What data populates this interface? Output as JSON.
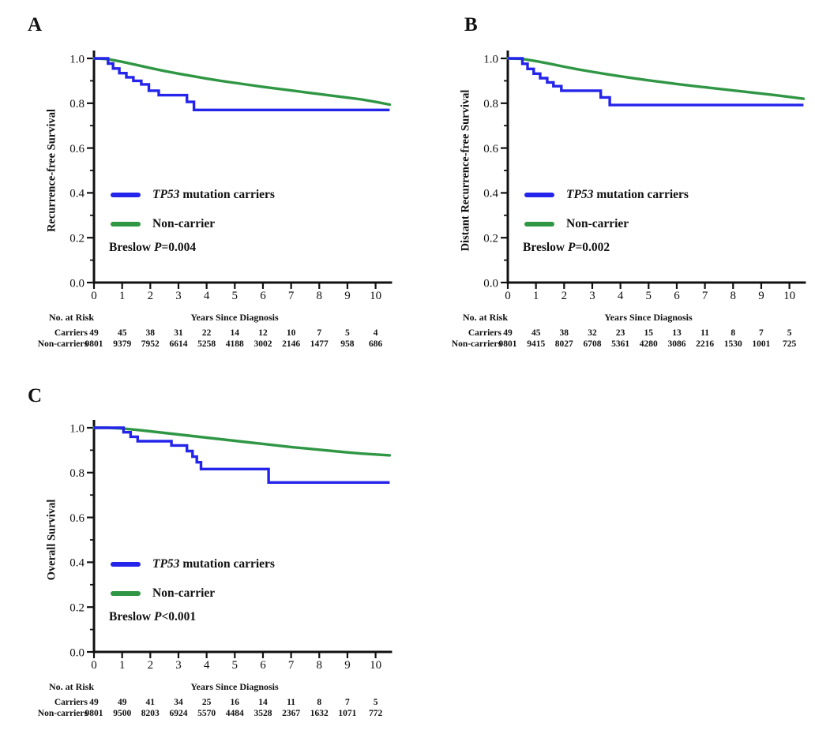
{
  "figure": {
    "background": "#ffffff",
    "description": "Kaplan-Meier survival curves comparing TP53 mutation carriers vs non-carriers"
  },
  "chart_data": [
    {
      "panel": "A",
      "type": "line",
      "subtype": "kaplan-meier-step",
      "ylabel": "Recurrence-free Survival",
      "xlabel": "Years Since Diagnosis",
      "xlim": [
        0,
        10.5
      ],
      "ylim": [
        0,
        1.0
      ],
      "xticks": [
        0,
        1,
        2,
        3,
        4,
        5,
        6,
        7,
        8,
        9,
        10
      ],
      "yticks": [
        1.0,
        0.8,
        0.6,
        0.4,
        0.2,
        0.0
      ],
      "ytick_labels": [
        "1.0",
        "0.8",
        "0.6",
        "0.4",
        "0.2",
        "0.0"
      ],
      "grid": false,
      "legend_position": "center-left",
      "pvalue": {
        "prefix": "Breslow ",
        "symbol": "P",
        "rest": "=0.004"
      },
      "series": [
        {
          "name": "TP53 mutation carriers",
          "name_italic": "TP53",
          "name_rest": " mutation carriers",
          "color": "#2424EA",
          "style": "step",
          "start": [
            0,
            1.0
          ],
          "end_x": 10.5,
          "drops": [
            [
              0.5,
              0.977
            ],
            [
              0.68,
              0.955
            ],
            [
              0.9,
              0.934
            ],
            [
              1.15,
              0.916
            ],
            [
              1.4,
              0.9
            ],
            [
              1.68,
              0.884
            ],
            [
              1.95,
              0.856
            ],
            [
              2.3,
              0.836
            ],
            [
              3.3,
              0.806
            ],
            [
              3.55,
              0.77
            ]
          ]
        },
        {
          "name": "Non-carrier",
          "name_italic": "",
          "name_rest": "Non-carrier",
          "color": "#2F9644",
          "style": "smooth",
          "points": [
            [
              0,
              1.0
            ],
            [
              0.5,
              0.997
            ],
            [
              1,
              0.985
            ],
            [
              1.5,
              0.971
            ],
            [
              2,
              0.957
            ],
            [
              2.5,
              0.944
            ],
            [
              3,
              0.932
            ],
            [
              3.5,
              0.921
            ],
            [
              4,
              0.91
            ],
            [
              4.5,
              0.9
            ],
            [
              5,
              0.891
            ],
            [
              5.5,
              0.882
            ],
            [
              6,
              0.873
            ],
            [
              6.5,
              0.865
            ],
            [
              7,
              0.857
            ],
            [
              7.5,
              0.849
            ],
            [
              8,
              0.841
            ],
            [
              8.5,
              0.833
            ],
            [
              9,
              0.825
            ],
            [
              9.5,
              0.817
            ],
            [
              10,
              0.806
            ],
            [
              10.5,
              0.794
            ]
          ]
        }
      ],
      "risk_table": {
        "title": "No. at Risk",
        "years": [
          0,
          1,
          2,
          3,
          4,
          5,
          6,
          7,
          8,
          9,
          10
        ],
        "rows": [
          {
            "label": "Carriers",
            "values": [
              "49",
              "45",
              "38",
              "31",
              "22",
              "14",
              "12",
              "10",
              "7",
              "5",
              "4"
            ]
          },
          {
            "label": "Non-carriers",
            "values": [
              "9801",
              "9379",
              "7952",
              "6614",
              "5258",
              "4188",
              "3002",
              "2146",
              "1477",
              "958",
              "686"
            ]
          }
        ]
      }
    },
    {
      "panel": "B",
      "type": "line",
      "subtype": "kaplan-meier-step",
      "ylabel": "Distant Recurrence-free Survival",
      "xlabel": "Years Since Diagnosis",
      "xlim": [
        0,
        10.5
      ],
      "ylim": [
        0,
        1.0
      ],
      "xticks": [
        0,
        1,
        2,
        3,
        4,
        5,
        6,
        7,
        8,
        9,
        10
      ],
      "yticks": [
        1.0,
        0.8,
        0.6,
        0.4,
        0.2,
        0.0
      ],
      "ytick_labels": [
        "1.0",
        "0.8",
        "0.6",
        "0.4",
        "0.2",
        "0.0"
      ],
      "grid": false,
      "legend_position": "center-left",
      "pvalue": {
        "prefix": "Breslow ",
        "symbol": "P",
        "rest": "=0.002"
      },
      "series": [
        {
          "name": "TP53 mutation carriers",
          "name_italic": "TP53",
          "name_rest": " mutation carriers",
          "color": "#2424EA",
          "style": "step",
          "start": [
            0,
            1.0
          ],
          "end_x": 10.5,
          "drops": [
            [
              0.52,
              0.976
            ],
            [
              0.7,
              0.953
            ],
            [
              0.92,
              0.932
            ],
            [
              1.15,
              0.912
            ],
            [
              1.4,
              0.893
            ],
            [
              1.62,
              0.876
            ],
            [
              1.9,
              0.856
            ],
            [
              3.3,
              0.826
            ],
            [
              3.62,
              0.792
            ]
          ]
        },
        {
          "name": "Non-carrier",
          "name_italic": "",
          "name_rest": "Non-carrier",
          "color": "#2F9644",
          "style": "smooth",
          "points": [
            [
              0,
              1.0
            ],
            [
              0.5,
              0.998
            ],
            [
              1,
              0.988
            ],
            [
              1.5,
              0.976
            ],
            [
              2,
              0.963
            ],
            [
              2.5,
              0.951
            ],
            [
              3,
              0.94
            ],
            [
              3.5,
              0.93
            ],
            [
              4,
              0.92
            ],
            [
              4.5,
              0.911
            ],
            [
              5,
              0.902
            ],
            [
              5.5,
              0.894
            ],
            [
              6,
              0.886
            ],
            [
              6.5,
              0.878
            ],
            [
              7,
              0.871
            ],
            [
              7.5,
              0.864
            ],
            [
              8,
              0.857
            ],
            [
              8.5,
              0.85
            ],
            [
              9,
              0.843
            ],
            [
              9.5,
              0.836
            ],
            [
              10,
              0.828
            ],
            [
              10.5,
              0.82
            ]
          ]
        }
      ],
      "risk_table": {
        "title": "No. at Risk",
        "years": [
          0,
          1,
          2,
          3,
          4,
          5,
          6,
          7,
          8,
          9,
          10
        ],
        "rows": [
          {
            "label": "Carriers",
            "values": [
              "49",
              "45",
              "38",
              "32",
              "23",
              "15",
              "13",
              "11",
              "8",
              "7",
              "5"
            ]
          },
          {
            "label": "Non-carriers",
            "values": [
              "9801",
              "9415",
              "8027",
              "6708",
              "5361",
              "4280",
              "3086",
              "2216",
              "1530",
              "1001",
              "725"
            ]
          }
        ]
      }
    },
    {
      "panel": "C",
      "type": "line",
      "subtype": "kaplan-meier-step",
      "ylabel": "Overall Survival",
      "xlabel": "Years Since Diagnosis",
      "xlim": [
        0,
        10.5
      ],
      "ylim": [
        0,
        1.0
      ],
      "xticks": [
        0,
        1,
        2,
        3,
        4,
        5,
        6,
        7,
        8,
        9,
        10
      ],
      "yticks": [
        1.0,
        0.8,
        0.6,
        0.4,
        0.2,
        0.0
      ],
      "ytick_labels": [
        "1.0",
        "0.8",
        "0.6",
        "0.4",
        "0.2",
        "0.0"
      ],
      "grid": false,
      "legend_position": "center-left",
      "pvalue": {
        "prefix": "Breslow ",
        "symbol": "P",
        "rest": "<0.001"
      },
      "series": [
        {
          "name": "TP53 mutation carriers",
          "name_italic": "TP53",
          "name_rest": " mutation carriers",
          "color": "#2424EA",
          "style": "step",
          "start": [
            0,
            1.0
          ],
          "end_x": 10.5,
          "drops": [
            [
              1.05,
              0.98
            ],
            [
              1.3,
              0.96
            ],
            [
              1.55,
              0.94
            ],
            [
              2.75,
              0.921
            ],
            [
              3.3,
              0.896
            ],
            [
              3.5,
              0.871
            ],
            [
              3.65,
              0.846
            ],
            [
              3.8,
              0.816
            ],
            [
              6.2,
              0.756
            ]
          ]
        },
        {
          "name": "Non-carrier",
          "name_italic": "",
          "name_rest": "Non-carrier",
          "color": "#2F9644",
          "style": "smooth",
          "points": [
            [
              0,
              1.0
            ],
            [
              0.5,
              1.0
            ],
            [
              1,
              0.997
            ],
            [
              1.5,
              0.991
            ],
            [
              2,
              0.984
            ],
            [
              2.5,
              0.977
            ],
            [
              3,
              0.97
            ],
            [
              3.5,
              0.963
            ],
            [
              4,
              0.956
            ],
            [
              4.5,
              0.949
            ],
            [
              5,
              0.942
            ],
            [
              5.5,
              0.935
            ],
            [
              6,
              0.928
            ],
            [
              6.5,
              0.921
            ],
            [
              7,
              0.914
            ],
            [
              7.5,
              0.908
            ],
            [
              8,
              0.902
            ],
            [
              8.5,
              0.896
            ],
            [
              9,
              0.89
            ],
            [
              9.5,
              0.885
            ],
            [
              10,
              0.881
            ],
            [
              10.5,
              0.877
            ]
          ]
        }
      ],
      "risk_table": {
        "title": "No. at Risk",
        "years": [
          0,
          1,
          2,
          3,
          4,
          5,
          6,
          7,
          8,
          9,
          10
        ],
        "rows": [
          {
            "label": "Carriers",
            "values": [
              "49",
              "49",
              "41",
              "34",
              "25",
              "16",
              "14",
              "11",
              "8",
              "7",
              "5"
            ]
          },
          {
            "label": "Non-carriers",
            "values": [
              "9801",
              "9500",
              "8203",
              "6924",
              "5570",
              "4484",
              "3528",
              "2367",
              "1632",
              "1071",
              "772"
            ]
          }
        ]
      }
    }
  ]
}
